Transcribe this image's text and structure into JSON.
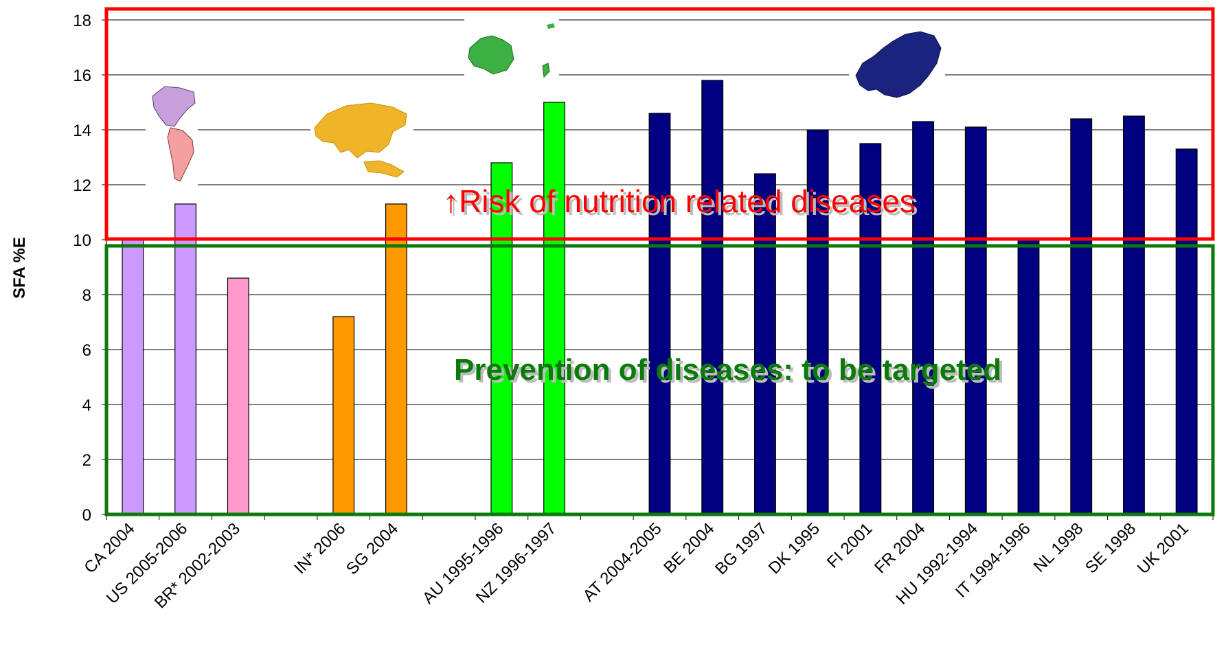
{
  "chart_data": {
    "type": "bar",
    "title": "",
    "xlabel": "",
    "ylabel": "SFA %E",
    "ylim": [
      0,
      18
    ],
    "yticks": [
      0,
      2,
      4,
      6,
      8,
      10,
      12,
      14,
      16,
      18
    ],
    "grid": true,
    "categories": [
      "CA 2004",
      "US 2005-2006",
      "BR* 2002-2003",
      "",
      "IN* 2006",
      "SG 2004",
      "",
      "AU 1995-1996",
      "NZ 1996-1997",
      "",
      "AT 2004-2005",
      "BE 2004",
      "BG 1997",
      "DK 1995",
      "FI 2001",
      "FR 2004",
      "HU 1992-1994",
      "IT 1994-1996",
      "NL 1998",
      "SE 1998",
      "UK 2001"
    ],
    "values": [
      10.0,
      11.3,
      8.6,
      null,
      7.2,
      11.3,
      null,
      12.8,
      15.0,
      null,
      14.6,
      15.8,
      12.4,
      14.0,
      13.5,
      14.3,
      14.1,
      10.0,
      14.4,
      14.5,
      13.3
    ],
    "colors": [
      "#cc99ff",
      "#cc99ff",
      "#ff99cc",
      null,
      "#ff9900",
      "#ff9900",
      null,
      "#00ff00",
      "#00ff00",
      null,
      "#000080",
      "#000080",
      "#000080",
      "#000080",
      "#000080",
      "#000080",
      "#000080",
      "#000080",
      "#000080",
      "#000080",
      "#000080"
    ],
    "regions": [
      {
        "label": "↑Risk of nutrition related diseases",
        "from": 10,
        "to": 18,
        "color": "#ff0000"
      },
      {
        "label": "Prevention of diseases: to be targeted",
        "from": 0,
        "to": 10,
        "color": "#0a7a0a"
      }
    ],
    "map_images": [
      "americas-map",
      "asia-map",
      "oceania-map",
      "europe-map"
    ]
  }
}
